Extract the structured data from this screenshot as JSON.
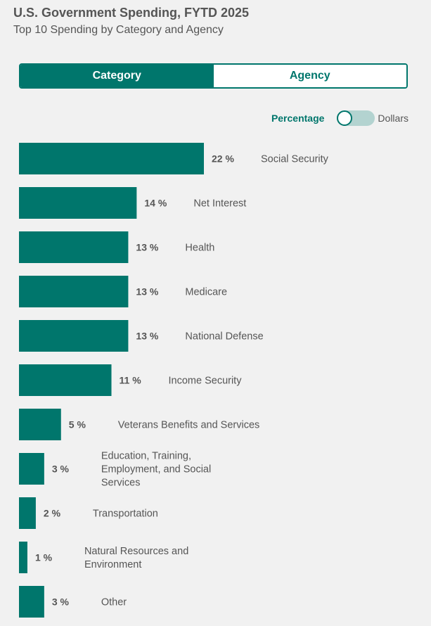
{
  "header": {
    "title": "U.S. Government Spending, FYTD 2025",
    "subtitle": "Top 10 Spending by Category and Agency"
  },
  "tabs": {
    "category_label": "Category",
    "agency_label": "Agency",
    "selected": "Category"
  },
  "toggle": {
    "left_label": "Percentage",
    "right_label": "Dollars",
    "selected": "Percentage"
  },
  "colors": {
    "accent": "#00766c",
    "toggle_track": "#b3d3d0",
    "text": "#555555",
    "background": "#f1f1f1"
  },
  "chart_data": {
    "type": "bar",
    "orientation": "horizontal",
    "title": "Top 10 Spending by Category and Agency",
    "value_unit": "%",
    "xlim": [
      0,
      22
    ],
    "categories": [
      [
        "Social Security"
      ],
      [
        "Net Interest"
      ],
      [
        "Health"
      ],
      [
        "Medicare"
      ],
      [
        "National Defense"
      ],
      [
        "Income Security"
      ],
      [
        "Veterans Benefits and Services"
      ],
      [
        "Education, Training,",
        "Employment, and Social",
        "Services"
      ],
      [
        "Transportation"
      ],
      [
        "Natural Resources and",
        "Environment"
      ],
      [
        "Other"
      ]
    ],
    "values": [
      22,
      14,
      13,
      13,
      13,
      11,
      5,
      3,
      2,
      1,
      3
    ]
  }
}
